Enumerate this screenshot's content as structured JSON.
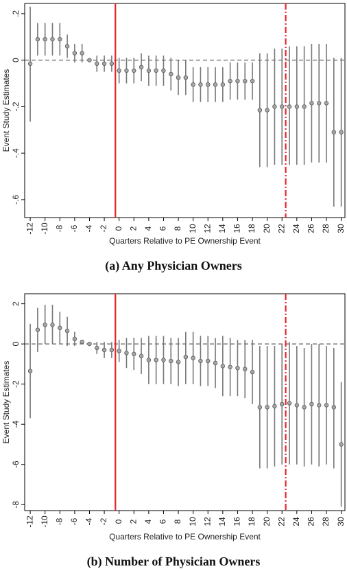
{
  "chart_data": [
    {
      "type": "errorbar",
      "caption": "(a) Any Physician Owners",
      "xlabel": "Quarters Relative to PE Ownership Event",
      "ylabel": "Event Study Estimates",
      "x": [
        -12,
        -11,
        -10,
        -9,
        -8,
        -7,
        -6,
        -5,
        -4,
        -3,
        -2,
        -1,
        0,
        1,
        2,
        3,
        4,
        5,
        6,
        7,
        8,
        9,
        10,
        11,
        12,
        13,
        14,
        15,
        16,
        17,
        18,
        19,
        20,
        21,
        22,
        23,
        24,
        25,
        26,
        27,
        28,
        29,
        30
      ],
      "values": [
        -0.015,
        0.09,
        0.09,
        0.09,
        0.09,
        0.06,
        0.03,
        0.03,
        0,
        -0.015,
        -0.015,
        -0.015,
        -0.045,
        -0.045,
        -0.045,
        -0.03,
        -0.045,
        -0.045,
        -0.045,
        -0.06,
        -0.075,
        -0.075,
        -0.105,
        -0.105,
        -0.105,
        -0.105,
        -0.105,
        -0.09,
        -0.09,
        -0.09,
        -0.09,
        -0.215,
        -0.215,
        -0.2,
        -0.2,
        -0.2,
        -0.2,
        -0.2,
        -0.185,
        -0.185,
        -0.185,
        -0.31,
        -0.31
      ],
      "lower": [
        -0.265,
        0.02,
        0.02,
        0.02,
        0.02,
        0.01,
        -0.01,
        -0.01,
        0,
        -0.05,
        -0.05,
        -0.05,
        -0.1,
        -0.1,
        -0.1,
        -0.09,
        -0.11,
        -0.11,
        -0.11,
        -0.13,
        -0.15,
        -0.15,
        -0.18,
        -0.18,
        -0.18,
        -0.18,
        -0.18,
        -0.17,
        -0.17,
        -0.17,
        -0.17,
        -0.46,
        -0.46,
        -0.45,
        -0.45,
        -0.45,
        -0.45,
        -0.45,
        -0.44,
        -0.44,
        -0.44,
        -0.63,
        -0.63
      ],
      "upper": [
        0.23,
        0.16,
        0.16,
        0.16,
        0.16,
        0.11,
        0.07,
        0.07,
        0,
        0.02,
        0.02,
        0.02,
        0.01,
        0.01,
        0.01,
        0.03,
        0.02,
        0.02,
        0.02,
        0.01,
        0,
        0,
        -0.03,
        -0.03,
        -0.03,
        -0.03,
        -0.03,
        -0.01,
        -0.01,
        -0.01,
        -0.01,
        0.03,
        0.03,
        0.05,
        0.05,
        0.06,
        0.06,
        0.06,
        0.07,
        0.07,
        0.07,
        0.01,
        0.01
      ],
      "color": "#a6a6a6",
      "ci_color": "#777777",
      "xlim": [
        -12.75,
        30.5
      ],
      "xticks": [
        -12,
        -10,
        -8,
        -6,
        -4,
        -2,
        0,
        2,
        4,
        6,
        8,
        10,
        12,
        14,
        16,
        18,
        20,
        22,
        24,
        26,
        28,
        30
      ],
      "ylim": [
        -0.677,
        0.244
      ],
      "yticks": [
        {
          "value": 0.2,
          "label": ".2"
        },
        0,
        {
          "value": -0.2,
          "label": "-.2"
        },
        {
          "value": -0.4,
          "label": "-.4"
        },
        {
          "value": -0.6,
          "label": "-.6"
        }
      ],
      "hline": 0,
      "vlines": [
        {
          "x": -0.5,
          "style": "solid",
          "color": "#e3262b"
        },
        {
          "x": 22.5,
          "style": "dashdot",
          "color": "#e3262b"
        }
      ]
    },
    {
      "type": "errorbar",
      "caption": "(b) Number of Physician Owners",
      "xlabel": "Quarters Relative to PE Ownership Event",
      "ylabel": "Event Study Estimates",
      "x": [
        -12,
        -11,
        -10,
        -9,
        -8,
        -7,
        -6,
        -5,
        -4,
        -3,
        -2,
        -1,
        0,
        1,
        2,
        3,
        4,
        5,
        6,
        7,
        8,
        9,
        10,
        11,
        12,
        13,
        14,
        15,
        16,
        17,
        18,
        19,
        20,
        21,
        22,
        23,
        24,
        25,
        26,
        27,
        28,
        29,
        30
      ],
      "values": [
        -1.35,
        0.7,
        0.95,
        0.95,
        0.8,
        0.65,
        0.25,
        0.1,
        0,
        -0.2,
        -0.3,
        -0.3,
        -0.35,
        -0.45,
        -0.5,
        -0.6,
        -0.8,
        -0.8,
        -0.8,
        -0.85,
        -0.9,
        -0.65,
        -0.7,
        -0.85,
        -0.85,
        -0.95,
        -1.1,
        -1.15,
        -1.2,
        -1.25,
        -1.4,
        -3.15,
        -3.15,
        -3.1,
        -3.0,
        -2.95,
        -3.05,
        -3.15,
        -3.0,
        -3.05,
        -3.05,
        -3.15,
        -5.0
      ],
      "lower": [
        -3.7,
        -0.4,
        0,
        0,
        0,
        -0.1,
        -0.1,
        0,
        0,
        -0.5,
        -0.7,
        -0.7,
        -0.9,
        -1.2,
        -1.3,
        -1.5,
        -2.0,
        -2.0,
        -2.0,
        -2.0,
        -2.1,
        -2.0,
        -2.0,
        -2.1,
        -2.1,
        -2.2,
        -2.6,
        -2.6,
        -2.6,
        -2.7,
        -3.0,
        -6.2,
        -6.2,
        -6.1,
        -6.0,
        -6.0,
        -6.0,
        -6.1,
        -6.0,
        -6.1,
        -6.0,
        -6.2,
        -8.1
      ],
      "upper": [
        1.0,
        1.8,
        1.95,
        1.95,
        1.6,
        1.35,
        0.6,
        0.2,
        0,
        0.1,
        0.1,
        0.1,
        0.2,
        0.3,
        0.3,
        0.3,
        0.4,
        0.4,
        0.4,
        0.3,
        0.3,
        0.6,
        0.6,
        0.4,
        0.4,
        0.3,
        0.4,
        0.3,
        0.2,
        0.2,
        0.2,
        -0.1,
        -0.1,
        -0.1,
        0,
        0.1,
        -0.1,
        -0.2,
        0,
        0,
        -0.1,
        -0.2,
        -1.9
      ],
      "color": "#a6a6a6",
      "ci_color": "#777777",
      "xlim": [
        -12.75,
        30.5
      ],
      "xticks": [
        -12,
        -10,
        -8,
        -6,
        -4,
        -2,
        0,
        2,
        4,
        6,
        8,
        10,
        12,
        14,
        16,
        18,
        20,
        22,
        24,
        26,
        28,
        30
      ],
      "ylim": [
        -8.3,
        2.5
      ],
      "yticks": [
        2,
        0,
        -2,
        -4,
        -6,
        -8
      ],
      "hline": 0,
      "vlines": [
        {
          "x": -0.5,
          "style": "solid",
          "color": "#e3262b"
        },
        {
          "x": 22.5,
          "style": "dashdot",
          "color": "#e3262b"
        }
      ]
    }
  ]
}
